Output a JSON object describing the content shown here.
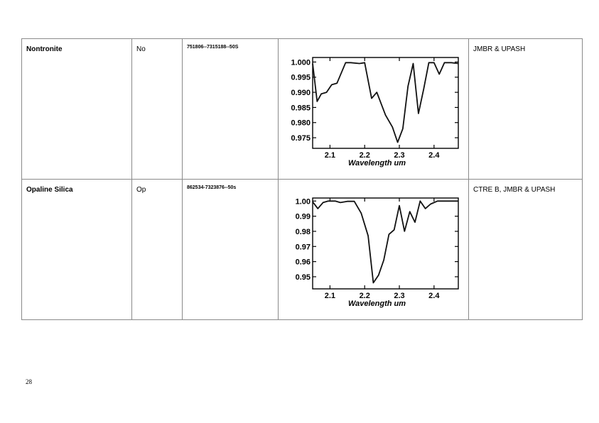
{
  "rows": [
    {
      "mineral": "Nontronite",
      "abbrev": "No",
      "code": "751806--7315188--50S",
      "source": "JMBR & UPASH"
    },
    {
      "mineral": "Opaline Silica",
      "abbrev": "Op",
      "code": "862534-7323876--50s",
      "source": "CTRE B, JMBR & UPASH"
    }
  ],
  "page_number": "28",
  "chart_data": [
    {
      "type": "line",
      "xlabel": "Wavelength um",
      "ylabel": "",
      "xlim": [
        2.05,
        2.47
      ],
      "ylim": [
        0.9715,
        1.0015
      ],
      "x_ticks": [
        2.1,
        2.2,
        2.3,
        2.4
      ],
      "x_tick_labels": [
        "2.1",
        "2.2",
        "2.3",
        "2.4"
      ],
      "y_ticks": [
        1.0,
        0.995,
        0.99,
        0.985,
        0.98,
        0.975
      ],
      "y_tick_labels": [
        "1.000",
        "0.995",
        "0.990",
        "0.985",
        "0.980",
        "0.975"
      ],
      "grid": false,
      "series": [
        {
          "x": [
            2.05,
            2.063,
            2.075,
            2.09,
            2.105,
            2.12,
            2.145,
            2.16,
            2.185,
            2.2,
            2.22,
            2.235,
            2.26,
            2.28,
            2.295,
            2.31,
            2.325,
            2.34,
            2.355,
            2.37,
            2.385,
            2.4,
            2.415,
            2.43,
            2.45,
            2.47
          ],
          "y": [
            0.9995,
            0.987,
            0.9895,
            0.99,
            0.9925,
            0.993,
            0.9998,
            0.9998,
            0.9995,
            0.9998,
            0.988,
            0.99,
            0.9825,
            0.9785,
            0.9735,
            0.978,
            0.992,
            0.9995,
            0.983,
            0.991,
            0.9998,
            0.9998,
            0.996,
            0.9998,
            0.9998,
            0.9995
          ]
        }
      ]
    },
    {
      "type": "line",
      "xlabel": "Wavelength um",
      "ylabel": "",
      "xlim": [
        2.05,
        2.47
      ],
      "ylim": [
        0.942,
        1.002
      ],
      "x_ticks": [
        2.1,
        2.2,
        2.3,
        2.4
      ],
      "x_tick_labels": [
        "2.1",
        "2.2",
        "2.3",
        "2.4"
      ],
      "y_ticks": [
        1.0,
        0.99,
        0.98,
        0.97,
        0.96,
        0.95
      ],
      "y_tick_labels": [
        "1.00",
        "0.99",
        "0.98",
        "0.97",
        "0.96",
        "0.95"
      ],
      "grid": false,
      "series": [
        {
          "x": [
            2.05,
            2.065,
            2.08,
            2.095,
            2.115,
            2.13,
            2.15,
            2.17,
            2.19,
            2.21,
            2.225,
            2.24,
            2.255,
            2.27,
            2.285,
            2.3,
            2.315,
            2.33,
            2.345,
            2.36,
            2.375,
            2.39,
            2.41,
            2.43,
            2.45,
            2.47
          ],
          "y": [
            0.9995,
            0.995,
            0.999,
            1.0,
            1.0,
            0.999,
            0.9998,
            0.9998,
            0.992,
            0.977,
            0.946,
            0.951,
            0.961,
            0.978,
            0.981,
            0.997,
            0.98,
            0.993,
            0.986,
            1.0,
            0.995,
            0.998,
            1.0,
            1.0,
            1.0,
            1.0
          ]
        }
      ]
    }
  ]
}
